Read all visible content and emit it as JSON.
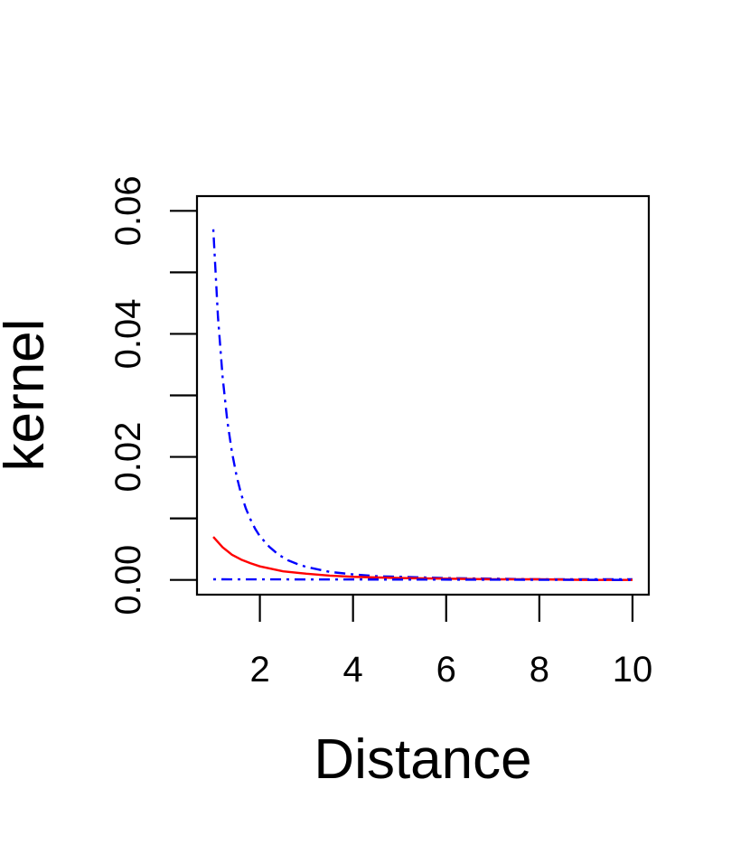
{
  "chart_data": {
    "type": "line",
    "title": "",
    "xlabel": "Distance",
    "ylabel": "kernel",
    "xlim": [
      0.65,
      10.35
    ],
    "ylim": [
      -0.0024,
      0.0624
    ],
    "xticks": [
      2,
      4,
      6,
      8,
      10
    ],
    "xtick_labels": [
      "2",
      "4",
      "6",
      "8",
      "10"
    ],
    "yticks": [
      0.0,
      0.01,
      0.02,
      0.03,
      0.04,
      0.05,
      0.06
    ],
    "ytick_labels": [
      "0.00",
      "",
      "0.02",
      "",
      "0.04",
      "",
      "0.06"
    ],
    "grid": false,
    "legend": "none",
    "series": [
      {
        "color": "#0000ff",
        "dash": "dotdash",
        "x": [
          1.0,
          1.1,
          1.2,
          1.3,
          1.4,
          1.5,
          1.6,
          1.7,
          1.8,
          1.9,
          2.0,
          2.2,
          2.4,
          2.6,
          2.8,
          3.0,
          3.5,
          4.0,
          4.5,
          5.0,
          6.0,
          7.0,
          8.0,
          9.0,
          10.0
        ],
        "y": [
          0.057,
          0.0428,
          0.033,
          0.0259,
          0.0208,
          0.0169,
          0.0139,
          0.0116,
          0.0098,
          0.0083,
          0.0071,
          0.0054,
          0.0041,
          0.0032,
          0.0026,
          0.0021,
          0.0013,
          0.0009,
          0.0006,
          0.0005,
          0.0003,
          0.0002,
          0.0001,
          0.0001,
          0.0001
        ]
      },
      {
        "color": "#ff0000",
        "dash": "solid",
        "x": [
          1.0,
          1.2,
          1.4,
          1.6,
          1.8,
          2.0,
          2.5,
          3.0,
          3.5,
          4.0,
          5.0,
          6.0,
          7.0,
          8.0,
          9.0,
          10.0
        ],
        "y": [
          0.007,
          0.0053,
          0.0041,
          0.0033,
          0.0027,
          0.0022,
          0.0014,
          0.001,
          0.0007,
          0.0005,
          0.0003,
          0.0002,
          0.0001,
          0.0001,
          0.0,
          0.0
        ]
      },
      {
        "color": "#0000ff",
        "dash": "dotdash",
        "x": [
          1.0,
          10.0
        ],
        "y": [
          0.0001,
          0.0
        ]
      }
    ]
  }
}
